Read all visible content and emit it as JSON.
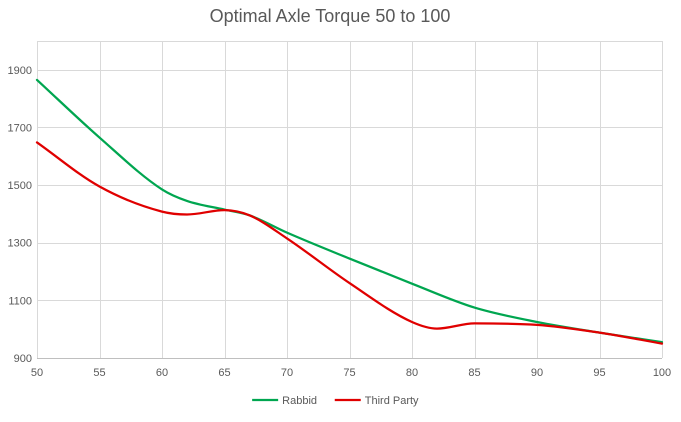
{
  "chart_data": {
    "type": "line",
    "title": "Optimal Axle Torque 50 to 100",
    "xlabel": "",
    "ylabel": "",
    "x_ticks": [
      50,
      55,
      60,
      65,
      70,
      75,
      80,
      85,
      90,
      95,
      100
    ],
    "y_ticks": [
      900,
      1100,
      1300,
      1500,
      1700,
      1900
    ],
    "xlim": [
      50,
      100
    ],
    "ylim": [
      900,
      2000
    ],
    "grid": true,
    "legend_position": "bottom",
    "series": [
      {
        "name": "Rabbid",
        "color": "#00a650",
        "x": [
          50,
          55,
          60,
          62,
          65,
          67,
          70,
          75,
          80,
          85,
          90,
          95,
          100
        ],
        "y": [
          1865,
          1665,
          1485,
          1445,
          1415,
          1395,
          1335,
          1245,
          1158,
          1075,
          1025,
          988,
          955
        ]
      },
      {
        "name": "Third Party",
        "color": "#e00000",
        "x": [
          50,
          55,
          60,
          62,
          65,
          67,
          70,
          75,
          80,
          82,
          85,
          90,
          95,
          100
        ],
        "y": [
          1648,
          1495,
          1408,
          1398,
          1413,
          1395,
          1315,
          1160,
          1025,
          1002,
          1020,
          1015,
          988,
          950
        ]
      }
    ]
  }
}
